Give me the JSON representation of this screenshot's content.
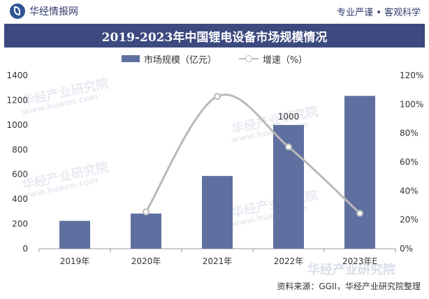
{
  "header": {
    "brand": "华经情报网",
    "tagline": "专业严谨 • 客观科学"
  },
  "watermark": {
    "name": "华经产业研究院",
    "url": "www.huaon.com"
  },
  "source": "资料来源：GGII，华经产业研究院整理",
  "colors": {
    "bar": "#5f70a0",
    "line": "#b9b9b9",
    "title_bg": "#3d4a80",
    "axis_text": "#333333"
  },
  "chart_data": {
    "type": "bar",
    "title": "2019-2023年中国锂电设备市场规模情况",
    "categories": [
      "2019年",
      "2020年",
      "2021年",
      "2022年",
      "2023年E"
    ],
    "series": [
      {
        "name": "市场规模（亿元）",
        "type": "bar",
        "axis": "left",
        "values": [
          225,
          284,
          588,
          1000,
          1235
        ]
      },
      {
        "name": "增速（%）",
        "type": "line",
        "axis": "right",
        "values": [
          null,
          25.5,
          105.5,
          70.5,
          24.5
        ]
      }
    ],
    "data_labels": [
      null,
      null,
      null,
      "1000",
      null
    ],
    "y_left": {
      "min": 0,
      "max": 1400,
      "ticks": [
        "0",
        "200",
        "400",
        "600",
        "800",
        "1000",
        "1200",
        "1400"
      ]
    },
    "y_right": {
      "min": 0,
      "max": 120,
      "ticks": [
        "0%",
        "20%",
        "40%",
        "60%",
        "80%",
        "100%",
        "120%"
      ]
    },
    "legend_position": "top-center",
    "grid": false
  }
}
